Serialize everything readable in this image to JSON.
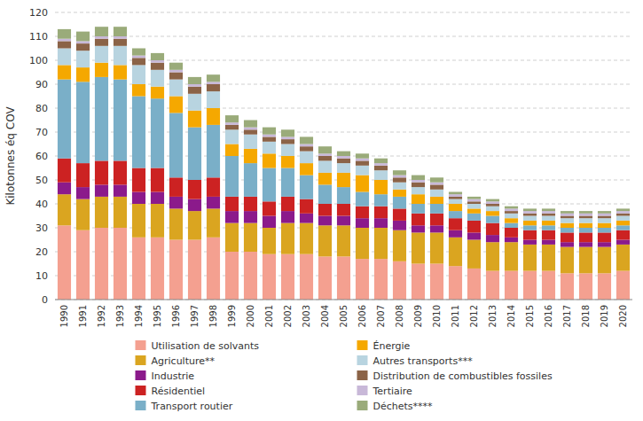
{
  "chart_data": {
    "type": "bar",
    "stacked": true,
    "grid": true,
    "legend": "bottom",
    "ylabel": "Kilotonnes éq COV",
    "categories": [
      1990,
      1991,
      1992,
      1993,
      1994,
      1995,
      1996,
      1997,
      1998,
      1999,
      2000,
      2001,
      2002,
      2003,
      2004,
      2005,
      2006,
      2007,
      2008,
      2009,
      2010,
      2011,
      2012,
      2013,
      2014,
      2015,
      2016,
      2017,
      2018,
      2019,
      2020
    ],
    "ylim": [
      0,
      120
    ],
    "yticks": [
      0,
      10,
      20,
      30,
      40,
      50,
      60,
      70,
      80,
      90,
      100,
      110,
      120
    ],
    "series": [
      {
        "name": "Utilisation de solvants",
        "color": "#f4a090",
        "values": [
          31,
          29,
          30,
          30,
          26,
          26,
          25,
          25,
          26,
          20,
          20,
          19,
          19,
          19,
          18,
          18,
          17,
          17,
          16,
          15,
          15,
          14,
          13,
          12,
          12,
          12,
          12,
          11,
          11,
          11,
          12
        ]
      },
      {
        "name": "Agriculture**",
        "color": "#daa520",
        "values": [
          13,
          13,
          13,
          13,
          14,
          14,
          13,
          12,
          12,
          12,
          12,
          11,
          13,
          13,
          13,
          13,
          13,
          13,
          13,
          13,
          13,
          12,
          12,
          12,
          12,
          11,
          11,
          11,
          11,
          11,
          11
        ]
      },
      {
        "name": "Industrie",
        "color": "#8b1a8b",
        "values": [
          5,
          5,
          5,
          5,
          5,
          5,
          5,
          5,
          5,
          5,
          5,
          5,
          5,
          4,
          4,
          4,
          4,
          4,
          4,
          3,
          3,
          3,
          3,
          3,
          2,
          2,
          2,
          2,
          2,
          2,
          2
        ]
      },
      {
        "name": "Résidentiel",
        "color": "#cc2222",
        "values": [
          10,
          10,
          10,
          10,
          10,
          10,
          8,
          8,
          8,
          6,
          6,
          6,
          6,
          6,
          5,
          5,
          5,
          5,
          5,
          5,
          5,
          5,
          5,
          5,
          4,
          4,
          4,
          4,
          4,
          4,
          4
        ]
      },
      {
        "name": "Transport routier",
        "color": "#7aafc8",
        "values": [
          33,
          34,
          35,
          34,
          30,
          29,
          27,
          22,
          22,
          17,
          14,
          14,
          12,
          10,
          8,
          7,
          6,
          5,
          5,
          4,
          4,
          3,
          3,
          3,
          2,
          2,
          2,
          2,
          2,
          2,
          2
        ]
      },
      {
        "name": "Énergie",
        "color": "#f5a800",
        "values": [
          6,
          6,
          6,
          6,
          5,
          5,
          7,
          7,
          7,
          5,
          6,
          6,
          5,
          5,
          5,
          6,
          7,
          6,
          3,
          4,
          3,
          3,
          2,
          2,
          2,
          2,
          2,
          2,
          2,
          2,
          2
        ]
      },
      {
        "name": "Autres transports***",
        "color": "#b8d4e0",
        "values": [
          7,
          7,
          7,
          8,
          8,
          7,
          7,
          7,
          7,
          6,
          6,
          5,
          5,
          5,
          5,
          4,
          4,
          4,
          3,
          3,
          3,
          2,
          2,
          2,
          2,
          2,
          2,
          2,
          2,
          2,
          2
        ]
      },
      {
        "name": "Distribution de combustibles fossiles",
        "color": "#8b6347",
        "values": [
          3,
          3,
          3,
          3,
          3,
          3,
          3,
          3,
          3,
          2,
          2,
          2,
          2,
          2,
          2,
          2,
          2,
          2,
          2,
          2,
          2,
          1,
          1,
          1,
          1,
          1,
          1,
          1,
          1,
          1,
          1
        ]
      },
      {
        "name": "Tertiaire",
        "color": "#c8b8d8",
        "values": [
          1,
          1,
          1,
          1,
          1,
          1,
          1,
          1,
          1,
          1,
          1,
          1,
          1,
          1,
          1,
          1,
          1,
          1,
          1,
          1,
          1,
          1,
          1,
          1,
          1,
          1,
          1,
          1,
          1,
          1,
          1
        ]
      },
      {
        "name": "Déchets****",
        "color": "#9aab7a",
        "values": [
          4,
          4,
          4,
          4,
          3,
          3,
          3,
          3,
          3,
          3,
          3,
          3,
          3,
          3,
          3,
          2,
          2,
          2,
          2,
          2,
          2,
          1,
          1,
          1,
          1,
          1,
          1,
          1,
          1,
          1,
          1
        ]
      }
    ]
  }
}
